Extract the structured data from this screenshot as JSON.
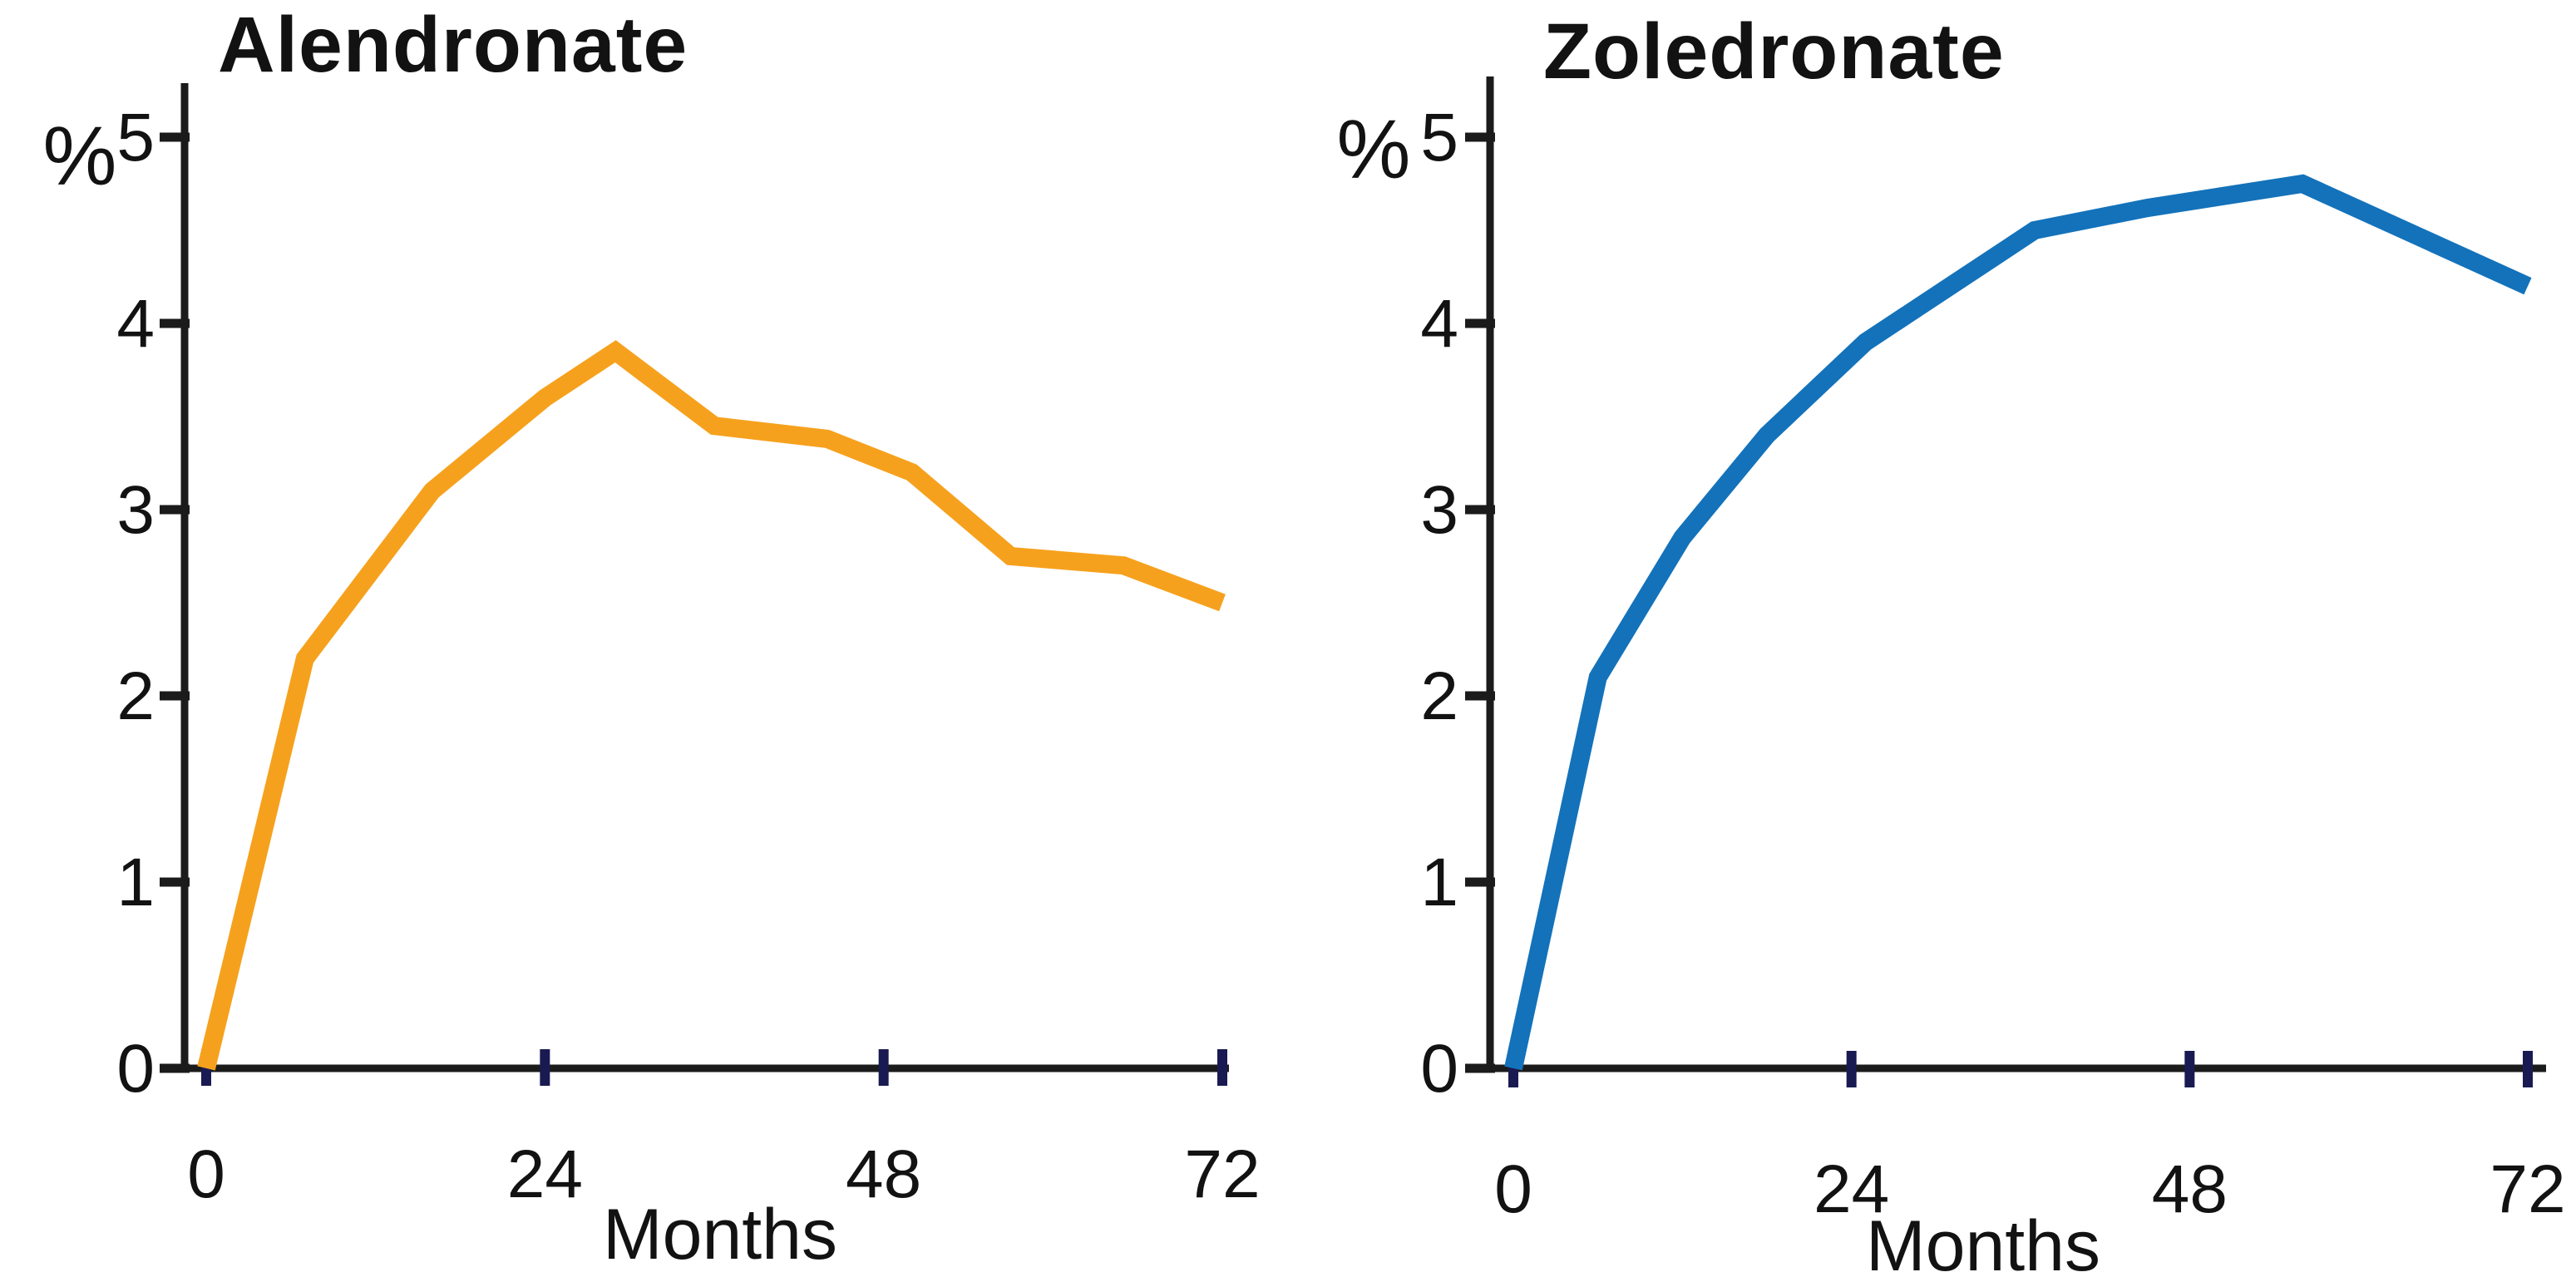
{
  "figure": {
    "background": "#ffffff",
    "text_color": "#121212",
    "axis_color": "#1b1b1b",
    "x_tick_mark_color": "#1a1a52",
    "y_tick_mark_color": "#1b1b1b"
  },
  "chart_data": [
    {
      "type": "line",
      "title": "Alendronate",
      "xlabel": "Months",
      "ylabel": "%",
      "xlim": [
        0,
        72
      ],
      "ylim": [
        0,
        5
      ],
      "x_ticks": [
        0,
        24,
        48,
        72
      ],
      "y_ticks": [
        0,
        1,
        2,
        3,
        4,
        5
      ],
      "grid": false,
      "legend_position": "none",
      "series": [
        {
          "name": "Alendronate",
          "color": "#f6a11d",
          "x": [
            0,
            7,
            12,
            16,
            20,
            24,
            29,
            36,
            44,
            50,
            57,
            65,
            72
          ],
          "y": [
            0,
            2.2,
            2.7,
            3.1,
            3.35,
            3.6,
            3.85,
            3.45,
            3.38,
            3.2,
            2.75,
            2.7,
            2.5
          ]
        }
      ]
    },
    {
      "type": "line",
      "title": "Zoledronate",
      "xlabel": "Months",
      "ylabel": "%",
      "xlim": [
        0,
        72
      ],
      "ylim": [
        0,
        5
      ],
      "x_ticks": [
        0,
        24,
        48,
        72
      ],
      "y_ticks": [
        0,
        1,
        2,
        3,
        4,
        5
      ],
      "grid": false,
      "legend_position": "none",
      "series": [
        {
          "name": "Zoledronate",
          "color": "#1372ba",
          "x": [
            0,
            6,
            12,
            18,
            25,
            31,
            37,
            45,
            56,
            72
          ],
          "y": [
            0,
            2.1,
            2.85,
            3.4,
            3.9,
            4.2,
            4.5,
            4.62,
            4.75,
            4.2
          ]
        }
      ]
    }
  ]
}
